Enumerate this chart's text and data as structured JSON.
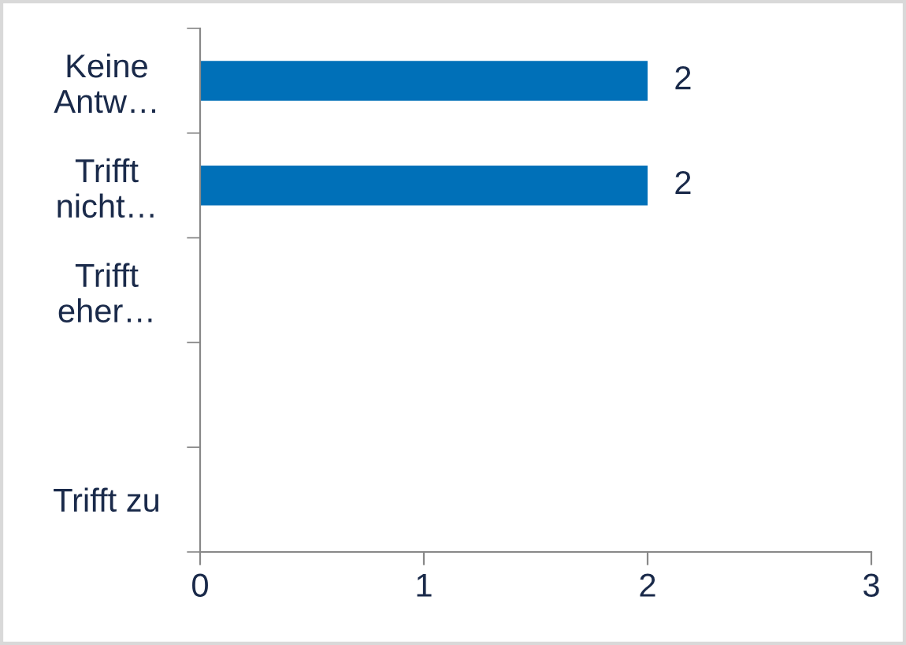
{
  "chart_data": {
    "type": "bar",
    "orientation": "horizontal",
    "categories": [
      "Keine\nAntw…",
      "Trifft\nnicht…",
      "Trifft\neher…",
      null,
      "Trifft zu"
    ],
    "values": [
      2,
      2,
      null,
      null,
      null
    ],
    "value_labels": [
      "2",
      "2",
      null,
      null,
      null
    ],
    "color": "#0070b8",
    "xlim": [
      0,
      3
    ],
    "xticks": [
      0,
      1,
      2,
      3
    ],
    "grid": false,
    "legend": false
  }
}
